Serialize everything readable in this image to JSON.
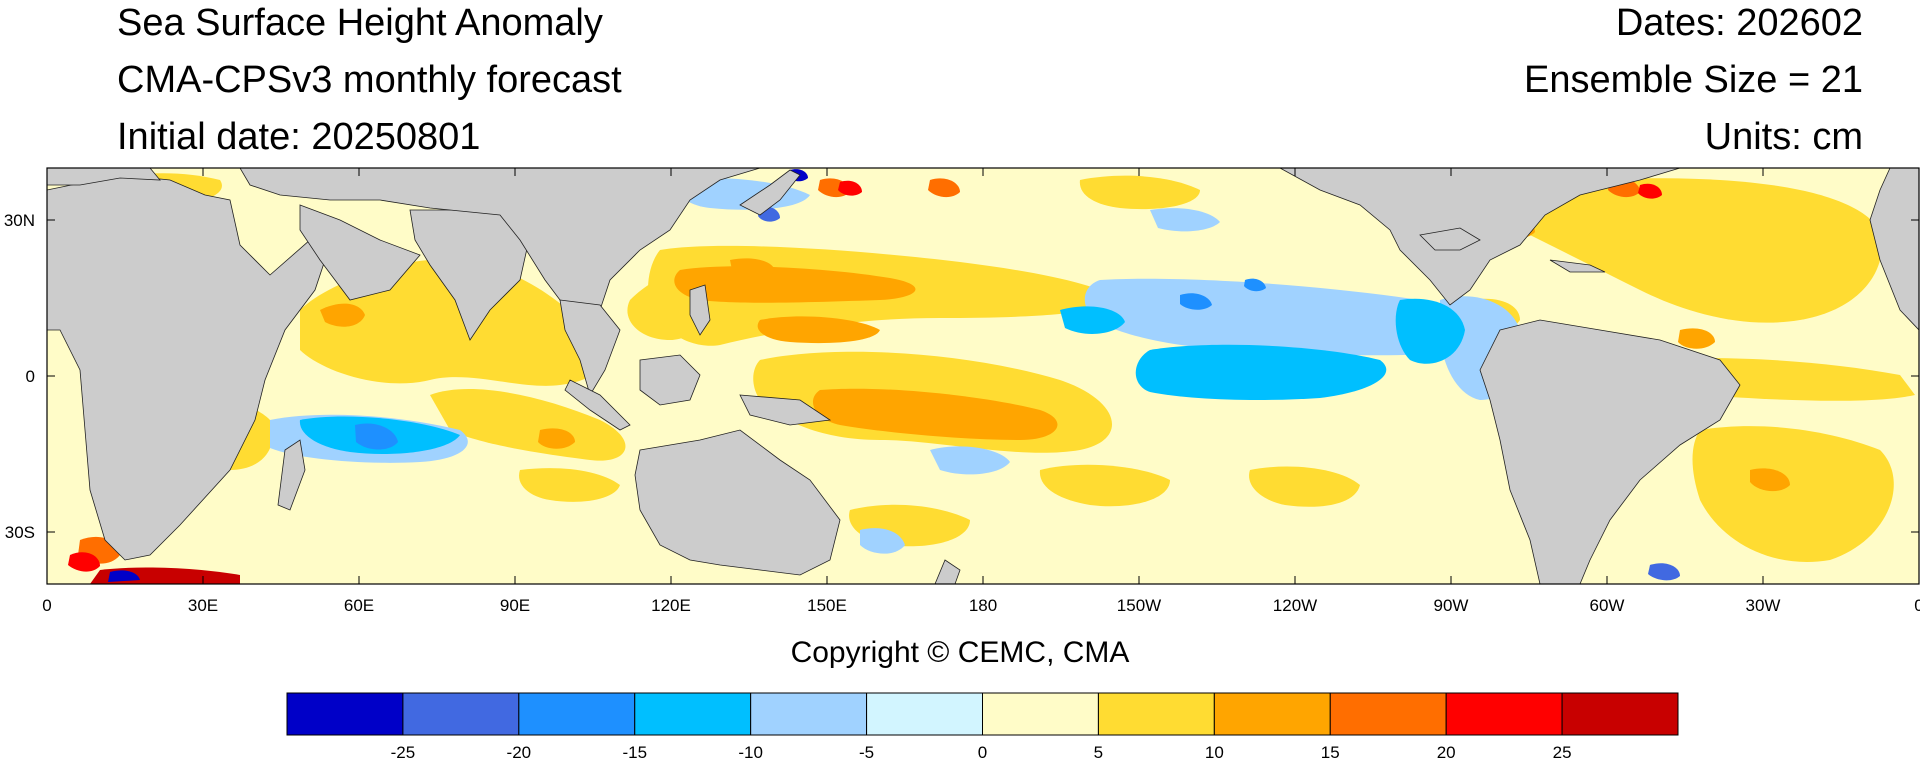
{
  "title": {
    "main": "Sea Surface Height Anomaly",
    "model": "CMA-CPSv3 monthly forecast",
    "initial_date": "Initial date: 20250801",
    "dates": "Dates: 202602",
    "ensemble": "Ensemble Size = 21",
    "units": "Units: cm"
  },
  "map": {
    "lon_labels": [
      "0",
      "30E",
      "60E",
      "90E",
      "120E",
      "150E",
      "180",
      "150W",
      "120W",
      "90W",
      "60W",
      "30W",
      "0"
    ],
    "lat_labels": [
      "30N",
      "0",
      "30S"
    ],
    "land_color": "#cccccc",
    "ocean_base_color": "#fffcc8"
  },
  "colorbar": {
    "colors": [
      "#0000c8",
      "#4169e1",
      "#1e90ff",
      "#00bfff",
      "#a0d2ff",
      "#d2f5ff",
      "#fffcc8",
      "#ffdc32",
      "#ffa500",
      "#ff6e00",
      "#ff0000",
      "#c80000"
    ],
    "labels": [
      "-25",
      "-20",
      "-15",
      "-10",
      "-5",
      "0",
      "5",
      "10",
      "15",
      "20",
      "25"
    ]
  },
  "copyright": "Copyright © CEMC, CMA"
}
